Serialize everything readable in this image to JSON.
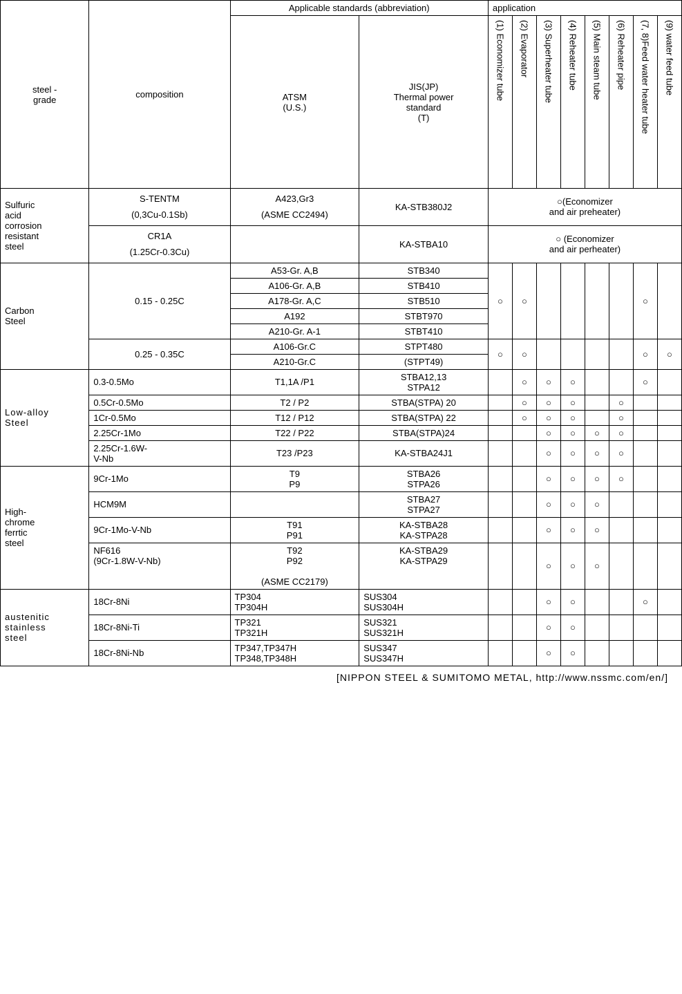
{
  "headers": {
    "applicable": "Applicable standards (abbreviation)",
    "application": "application",
    "steel": "steel -\ngrade",
    "composition": "composition",
    "atsm": "ATSM\n(U.S.)",
    "jis": "JIS(JP)\nThermal power\nstandard\n(T)",
    "apps": [
      "(1) Economizer tube",
      "(2) Evaporator",
      "(3) Superheater tube",
      "(4) Reheater tube",
      "(5) Main steam tube",
      "(6) Reheater pipe",
      "(7, 8)Feed water heater tube",
      "(9) water feed tube"
    ]
  },
  "sulfur": {
    "grade": "Sulfuric\nacid\ncorrosion\nresistant\nsteel",
    "r1": {
      "comp": "S-TENTM\n(0,3Cu-0.1Sb)",
      "atsm": "A423,Gr3\n(ASME CC2494)",
      "jis": "KA-STB380J2",
      "note": "○(Economizer\nand air preheater)"
    },
    "r2": {
      "comp": "CR1A\n(1.25Cr-0.3Cu)",
      "atsm": "",
      "jis": "KA-STBA10",
      "note": "○ (Economizer\nand air perheater)"
    }
  },
  "carbon": {
    "grade": "Carbon\nSteel",
    "r1": {
      "comp": "0.15 - 0.25C",
      "atsm": [
        "A53-Gr. A,B",
        "A106-Gr. A,B",
        "A178-Gr. A,C",
        "A192",
        "A210-Gr. A-1"
      ],
      "jis": [
        "STB340",
        "STB410",
        "STB510",
        "STBT970",
        "STBT410"
      ]
    },
    "r2": {
      "comp": "0.25 - 0.35C",
      "atsm": [
        "A106-Gr.C",
        "A210-Gr.C"
      ],
      "jis": [
        "STPT480",
        "(STPT49)"
      ]
    }
  },
  "lowalloy": {
    "grade": "Low-alloy\nSteel",
    "rows": [
      {
        "comp": "0.3-0.5Mo",
        "atsm": "T1,1A /P1",
        "jis": "STBA12,13\nSTPA12",
        "m": [
          "",
          "○",
          "○",
          "○",
          "",
          "",
          "○",
          ""
        ]
      },
      {
        "comp": "0.5Cr-0.5Mo",
        "atsm": "T2 / P2",
        "jis": "STBA(STPA) 20",
        "m": [
          "",
          "○",
          "○",
          "○",
          "",
          "○",
          "",
          ""
        ]
      },
      {
        "comp": "1Cr-0.5Mo",
        "atsm": "T12 / P12",
        "jis": "STBA(STPA) 22",
        "m": [
          "",
          "○",
          "○",
          "○",
          "",
          "○",
          "",
          ""
        ]
      },
      {
        "comp": "2.25Cr-1Mo",
        "atsm": "T22 / P22",
        "jis": "STBA(STPA)24",
        "m": [
          "",
          "",
          "○",
          "○",
          "○",
          "○",
          "",
          ""
        ]
      },
      {
        "comp": "2.25Cr-1.6W-\nV-Nb",
        "atsm": "T23 /P23",
        "jis": "KA-STBA24J1",
        "m": [
          "",
          "",
          "○",
          "○",
          "○",
          "○",
          "",
          ""
        ]
      }
    ]
  },
  "highcr": {
    "grade": "High-\nchrome\nferrtic\nsteel",
    "rows": [
      {
        "comp": "9Cr-1Mo",
        "atsm": "T9\nP9",
        "jis": "STBA26\nSTPA26",
        "m": [
          "",
          "",
          "○",
          "○",
          "○",
          "○",
          "",
          ""
        ]
      },
      {
        "comp": "HCM9M",
        "atsm": "",
        "jis": "STBA27\nSTPA27",
        "m": [
          "",
          "",
          "○",
          "○",
          "○",
          "",
          "",
          ""
        ]
      },
      {
        "comp": "9Cr-1Mo-V-Nb",
        "atsm": "T91\nP91",
        "jis": "KA-STBA28\nKA-STPA28",
        "m": [
          "",
          "",
          "○",
          "○",
          "○",
          "",
          "",
          ""
        ]
      },
      {
        "comp": "NF616\n(9Cr-1.8W-V-Nb)",
        "atsm": "T92\nP92\n\n(ASME CC2179)",
        "jis": "KA-STBA29\nKA-STPA29",
        "m": [
          "",
          "",
          "○",
          "○",
          "○",
          "",
          "",
          ""
        ]
      }
    ]
  },
  "aust": {
    "grade": "austenitic\nstainless\nsteel",
    "rows": [
      {
        "comp": "18Cr-8Ni",
        "atsm": "TP304\nTP304H",
        "jis": "SUS304\nSUS304H",
        "m": [
          "",
          "",
          "○",
          "○",
          "",
          "",
          "○",
          ""
        ]
      },
      {
        "comp": "18Cr-8Ni-Ti",
        "atsm": "TP321\nTP321H",
        "jis": "SUS321\nSUS321H",
        "m": [
          "",
          "",
          "○",
          "○",
          "",
          "",
          "",
          ""
        ]
      },
      {
        "comp": "18Cr-8Ni-Nb",
        "atsm": "TP347,TP347H\nTP348,TP348H",
        "jis": "SUS347\nSUS347H",
        "m": [
          "",
          "",
          "○",
          "○",
          "",
          "",
          "",
          ""
        ]
      }
    ]
  },
  "marks": {
    "carbon_r1": [
      "○",
      "○",
      "",
      "",
      "",
      "",
      "○",
      ""
    ],
    "carbon_r2": [
      "○",
      "○",
      "",
      "",
      "",
      "",
      "○",
      "○"
    ]
  },
  "caption": "[NIPPON STEEL & SUMITOMO METAL, http://www.nssmc.com/en/]"
}
